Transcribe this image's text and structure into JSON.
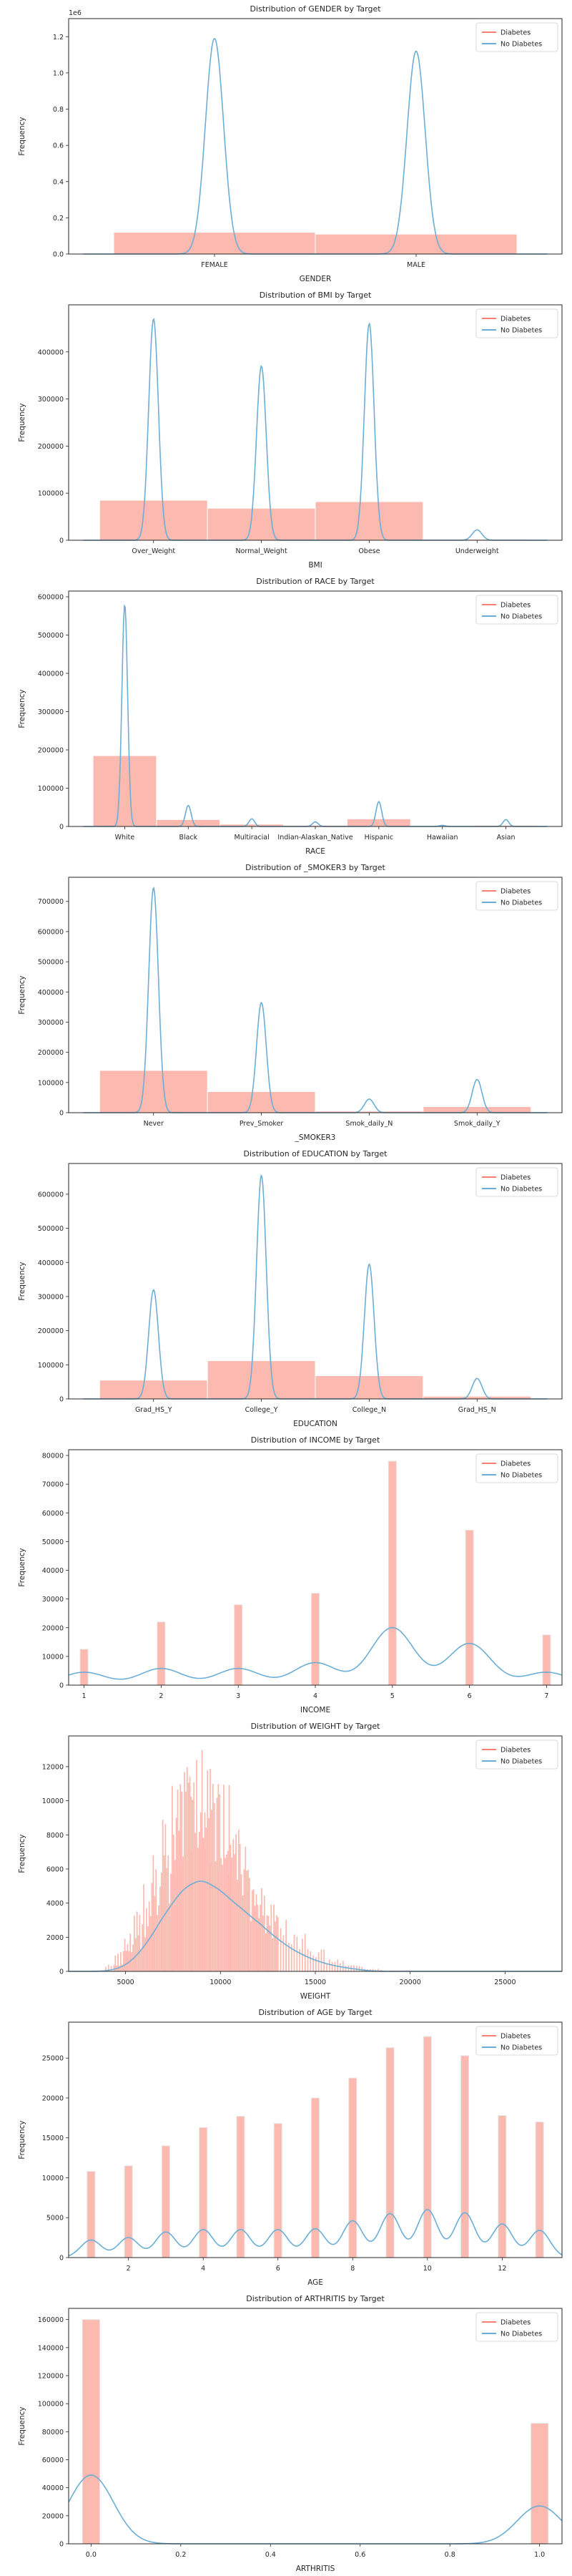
{
  "colors": {
    "diabetes": "#fa8072",
    "diabetes_fill": "#fbb9b0",
    "no_diabetes": "#6baed6"
  },
  "legend_labels": [
    "Diabetes",
    "No Diabetes"
  ],
  "chart_data": [
    {
      "id": "gender",
      "type": "bar",
      "title": "Distribution of GENDER by Target",
      "xlabel": "GENDER",
      "ylabel": "Frequency",
      "y_offset_label": "1e6",
      "categories": [
        "FEMALE",
        "MALE"
      ],
      "ylim": [
        0,
        1.3
      ],
      "yticks": [
        0.0,
        0.2,
        0.4,
        0.6,
        0.8,
        1.0,
        1.2
      ],
      "series": [
        {
          "name": "Diabetes",
          "values": [
            0.12,
            0.11
          ]
        },
        {
          "name": "No Diabetes",
          "values": [
            1.19,
            1.12
          ]
        }
      ],
      "legend": "top-right"
    },
    {
      "id": "bmi",
      "type": "bar",
      "title": "Distribution of BMI by Target",
      "xlabel": "BMI",
      "ylabel": "Frequency",
      "categories": [
        "Over_Weight",
        "Normal_Weight",
        "Obese",
        "Underweight"
      ],
      "ylim": [
        0,
        500000
      ],
      "yticks": [
        0,
        100000,
        200000,
        300000,
        400000
      ],
      "series": [
        {
          "name": "Diabetes",
          "values": [
            85000,
            68000,
            82000,
            2000
          ]
        },
        {
          "name": "No Diabetes",
          "values": [
            470000,
            370000,
            460000,
            22000
          ]
        }
      ],
      "legend": "top-right"
    },
    {
      "id": "race",
      "type": "bar",
      "title": "Distribution of RACE by Target",
      "xlabel": "RACE",
      "ylabel": "Frequency",
      "categories": [
        "White",
        "Black",
        "Multiracial",
        "Indian-Alaskan_Native",
        "Hispanic",
        "Hawaiian",
        "Asian"
      ],
      "ylim": [
        0,
        615000
      ],
      "yticks": [
        0,
        100000,
        200000,
        300000,
        400000,
        500000,
        600000
      ],
      "series": [
        {
          "name": "Diabetes",
          "values": [
            185000,
            18000,
            6000,
            3000,
            20000,
            1000,
            3000
          ]
        },
        {
          "name": "No Diabetes",
          "values": [
            580000,
            55000,
            20000,
            12000,
            65000,
            3000,
            18000
          ]
        }
      ],
      "legend": "top-right"
    },
    {
      "id": "smoker",
      "type": "bar",
      "title": "Distribution of _SMOKER3 by Target",
      "xlabel": "_SMOKER3",
      "ylabel": "Frequency",
      "categories": [
        "Never",
        "Prev_Smoker",
        "Smok_daily_N",
        "Smok_daily_Y"
      ],
      "ylim": [
        0,
        780000
      ],
      "yticks": [
        0,
        100000,
        200000,
        300000,
        400000,
        500000,
        600000,
        700000
      ],
      "series": [
        {
          "name": "Diabetes",
          "values": [
            140000,
            70000,
            5000,
            20000
          ]
        },
        {
          "name": "No Diabetes",
          "values": [
            745000,
            365000,
            45000,
            110000
          ]
        }
      ],
      "legend": "top-right"
    },
    {
      "id": "education",
      "type": "bar",
      "title": "Distribution of EDUCATION by Target",
      "xlabel": "EDUCATION",
      "ylabel": "Frequency",
      "categories": [
        "Grad_HS_Y",
        "College_Y",
        "College_N",
        "Grad_HS_N"
      ],
      "ylim": [
        0,
        690000
      ],
      "yticks": [
        0,
        100000,
        200000,
        300000,
        400000,
        500000,
        600000
      ],
      "series": [
        {
          "name": "Diabetes",
          "values": [
            55000,
            112000,
            68000,
            8000
          ]
        },
        {
          "name": "No Diabetes",
          "values": [
            320000,
            655000,
            395000,
            60000
          ]
        }
      ],
      "legend": "top-right"
    },
    {
      "id": "income",
      "type": "histogram",
      "title": "Distribution of INCOME by Target",
      "xlabel": "INCOME",
      "ylabel": "Frequency",
      "xlim": [
        0.8,
        7.2
      ],
      "xticks": [
        1,
        2,
        3,
        4,
        5,
        6,
        7
      ],
      "ylim": [
        0,
        82000
      ],
      "yticks": [
        0,
        10000,
        20000,
        30000,
        40000,
        50000,
        60000,
        70000,
        80000
      ],
      "series": [
        {
          "name": "Diabetes",
          "x": [
            1,
            2,
            3,
            4,
            5,
            6,
            7
          ],
          "values": [
            4500,
            5800,
            5800,
            7800,
            20000,
            14500,
            4500
          ]
        },
        {
          "name": "No Diabetes",
          "x": [
            1,
            2,
            3,
            4,
            5,
            6,
            7
          ],
          "values": [
            12500,
            22000,
            28000,
            32000,
            78000,
            54000,
            17500
          ]
        }
      ],
      "legend": "top-right"
    },
    {
      "id": "weight",
      "type": "histogram",
      "title": "Distribution of WEIGHT by Target",
      "xlabel": "WEIGHT",
      "ylabel": "Frequency",
      "xlim": [
        2000,
        28000
      ],
      "xticks": [
        5000,
        10000,
        15000,
        20000,
        25000
      ],
      "ylim": [
        0,
        13800
      ],
      "yticks": [
        0,
        2000,
        4000,
        6000,
        8000,
        10000,
        12000
      ],
      "series": [
        {
          "name": "Diabetes",
          "x": [
            5000,
            6000,
            7000,
            8000,
            9000,
            10000,
            11000,
            12000,
            13000,
            14000,
            15000,
            16000,
            17000
          ],
          "values": [
            200,
            1100,
            2600,
            3900,
            4400,
            3800,
            3000,
            2300,
            1500,
            900,
            500,
            250,
            120
          ]
        },
        {
          "name": "No Diabetes",
          "x": [
            4500,
            5000,
            5500,
            6000,
            6500,
            7000,
            7500,
            8000,
            8500,
            9000,
            9500,
            10000,
            10500,
            11000,
            11500,
            12000,
            12500,
            13000,
            14000,
            15000,
            16000,
            17000,
            18000,
            19500
          ],
          "values": [
            400,
            1200,
            2200,
            3500,
            5200,
            6800,
            9000,
            11500,
            12000,
            13000,
            10500,
            11000,
            9000,
            7500,
            6000,
            5000,
            4000,
            3200,
            2200,
            1300,
            700,
            350,
            150,
            80
          ]
        }
      ],
      "legend": "top-right"
    },
    {
      "id": "age",
      "type": "histogram",
      "title": "Distribution of AGE by Target",
      "xlabel": "AGE",
      "ylabel": "Frequency",
      "xlim": [
        0.4,
        13.6
      ],
      "xticks": [
        2,
        4,
        6,
        8,
        10,
        12
      ],
      "ylim": [
        0,
        29500
      ],
      "yticks": [
        0,
        5000,
        10000,
        15000,
        20000,
        25000
      ],
      "series": [
        {
          "name": "Diabetes",
          "x": [
            1,
            2,
            3,
            4,
            5,
            6,
            7,
            8,
            9,
            10,
            11,
            12,
            13
          ],
          "values": [
            2200,
            2500,
            3200,
            3500,
            3500,
            3500,
            3600,
            4600,
            5500,
            6000,
            5600,
            4200,
            3400
          ]
        },
        {
          "name": "No Diabetes",
          "x": [
            1,
            2,
            3,
            4,
            5,
            6,
            7,
            8,
            9,
            10,
            11,
            12,
            13
          ],
          "values": [
            10800,
            11500,
            14000,
            16300,
            17700,
            16800,
            20000,
            22500,
            26300,
            27700,
            25300,
            17800,
            17000
          ]
        }
      ],
      "legend": "top-right"
    },
    {
      "id": "arthritis",
      "type": "histogram",
      "title": "Distribution of ARTHRITIS by Target",
      "xlabel": "ARTHRITIS",
      "ylabel": "Frequency",
      "xlim": [
        -0.05,
        1.05
      ],
      "xticks": [
        0.0,
        0.2,
        0.4,
        0.6,
        0.8,
        1.0
      ],
      "ylim": [
        0,
        168000
      ],
      "yticks": [
        0,
        20000,
        40000,
        60000,
        80000,
        100000,
        120000,
        140000,
        160000
      ],
      "series": [
        {
          "name": "Diabetes",
          "x": [
            0,
            1
          ],
          "values": [
            49000,
            27000
          ]
        },
        {
          "name": "No Diabetes",
          "x": [
            0,
            1
          ],
          "values": [
            160000,
            86000
          ]
        }
      ],
      "legend": "top-right"
    }
  ]
}
